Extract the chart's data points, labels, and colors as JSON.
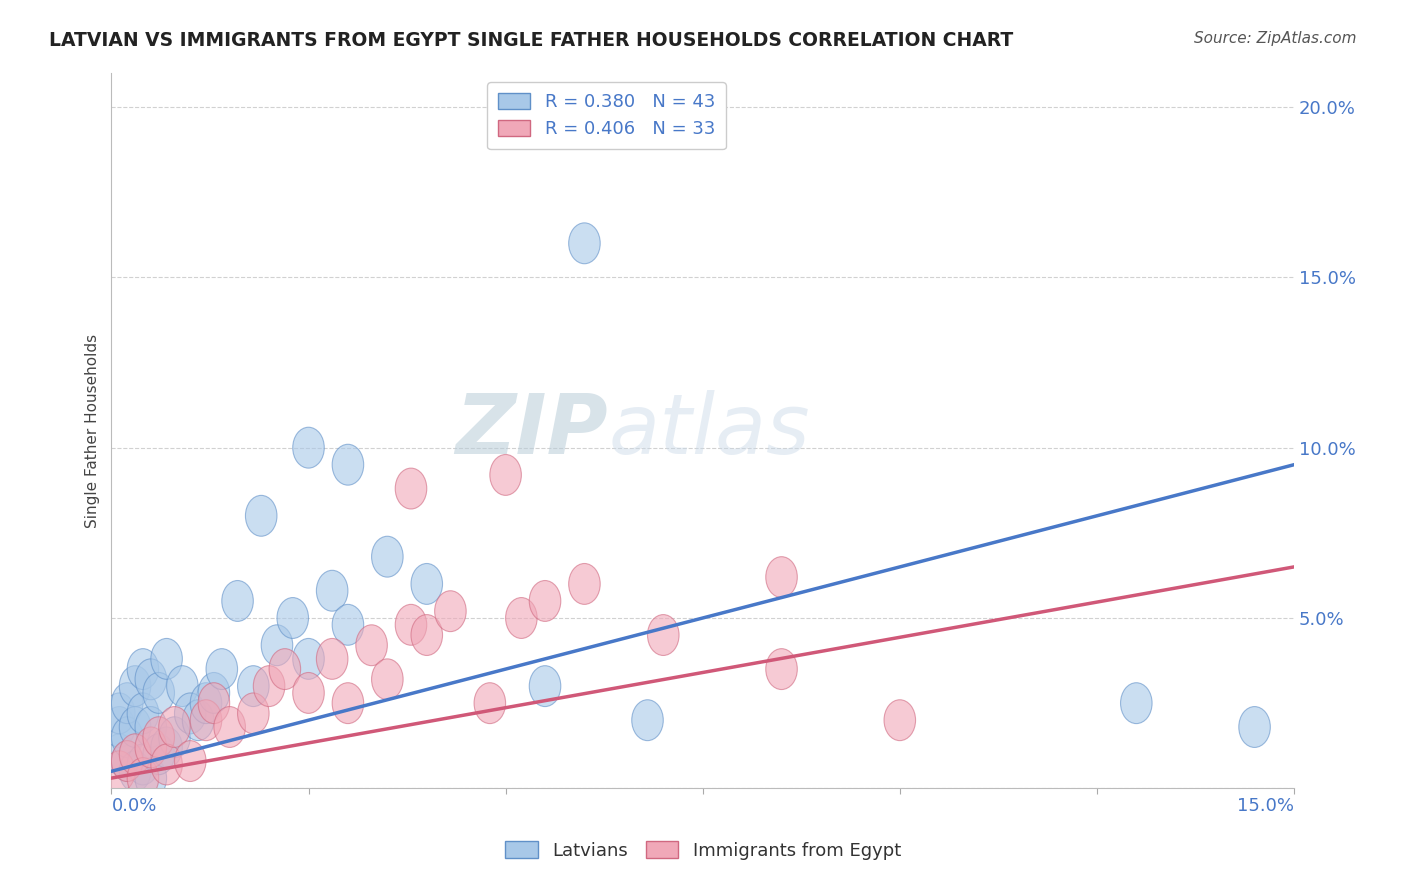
{
  "title": "LATVIAN VS IMMIGRANTS FROM EGYPT SINGLE FATHER HOUSEHOLDS CORRELATION CHART",
  "source": "Source: ZipAtlas.com",
  "ylabel": "Single Father Households",
  "legend_entries": [
    {
      "label": "Latvians",
      "R": 0.38,
      "N": 43
    },
    {
      "label": "Immigrants from Egypt",
      "R": 0.406,
      "N": 33
    }
  ],
  "blue_fill": "#a8c8e8",
  "blue_edge": "#6090c8",
  "pink_fill": "#f0a8b8",
  "pink_edge": "#d06880",
  "blue_line": "#4878c8",
  "pink_line": "#d05878",
  "watermark_color": "#d0dce8",
  "xlim": [
    0.0,
    0.15
  ],
  "ylim": [
    0.0,
    0.21
  ],
  "yticks": [
    0.0,
    0.05,
    0.1,
    0.15,
    0.2
  ],
  "ytick_labels": [
    "",
    "5.0%",
    "10.0%",
    "15.0%",
    "20.0%"
  ],
  "blue_line_x": [
    0.0,
    0.15
  ],
  "blue_line_y": [
    0.005,
    0.095
  ],
  "pink_line_x": [
    0.0,
    0.15
  ],
  "pink_line_y": [
    0.003,
    0.065
  ],
  "latvian_x": [
    0.001,
    0.001,
    0.001,
    0.002,
    0.002,
    0.002,
    0.003,
    0.003,
    0.003,
    0.004,
    0.004,
    0.004,
    0.005,
    0.005,
    0.005,
    0.006,
    0.006,
    0.007,
    0.007,
    0.008,
    0.009,
    0.01,
    0.011,
    0.012,
    0.013,
    0.014,
    0.016,
    0.018,
    0.019,
    0.021,
    0.023,
    0.025,
    0.028,
    0.03,
    0.035,
    0.04,
    0.055,
    0.06,
    0.068,
    0.13,
    0.145,
    0.025,
    0.03
  ],
  "latvian_y": [
    0.01,
    0.018,
    0.022,
    0.008,
    0.015,
    0.025,
    0.005,
    0.018,
    0.03,
    0.007,
    0.022,
    0.035,
    0.003,
    0.018,
    0.032,
    0.01,
    0.028,
    0.012,
    0.038,
    0.015,
    0.03,
    0.022,
    0.02,
    0.025,
    0.028,
    0.035,
    0.055,
    0.03,
    0.08,
    0.042,
    0.05,
    0.038,
    0.058,
    0.048,
    0.068,
    0.06,
    0.03,
    0.16,
    0.02,
    0.025,
    0.018,
    0.1,
    0.095
  ],
  "egypt_x": [
    0.001,
    0.002,
    0.003,
    0.004,
    0.005,
    0.006,
    0.007,
    0.008,
    0.01,
    0.012,
    0.013,
    0.015,
    0.018,
    0.02,
    0.022,
    0.025,
    0.028,
    0.03,
    0.033,
    0.035,
    0.038,
    0.04,
    0.043,
    0.048,
    0.052,
    0.055,
    0.06,
    0.07,
    0.085,
    0.1,
    0.085,
    0.038,
    0.05
  ],
  "egypt_y": [
    0.005,
    0.008,
    0.01,
    0.003,
    0.012,
    0.015,
    0.007,
    0.018,
    0.008,
    0.02,
    0.025,
    0.018,
    0.022,
    0.03,
    0.035,
    0.028,
    0.038,
    0.025,
    0.042,
    0.032,
    0.048,
    0.045,
    0.052,
    0.025,
    0.05,
    0.055,
    0.06,
    0.045,
    0.035,
    0.02,
    0.062,
    0.088,
    0.092
  ]
}
